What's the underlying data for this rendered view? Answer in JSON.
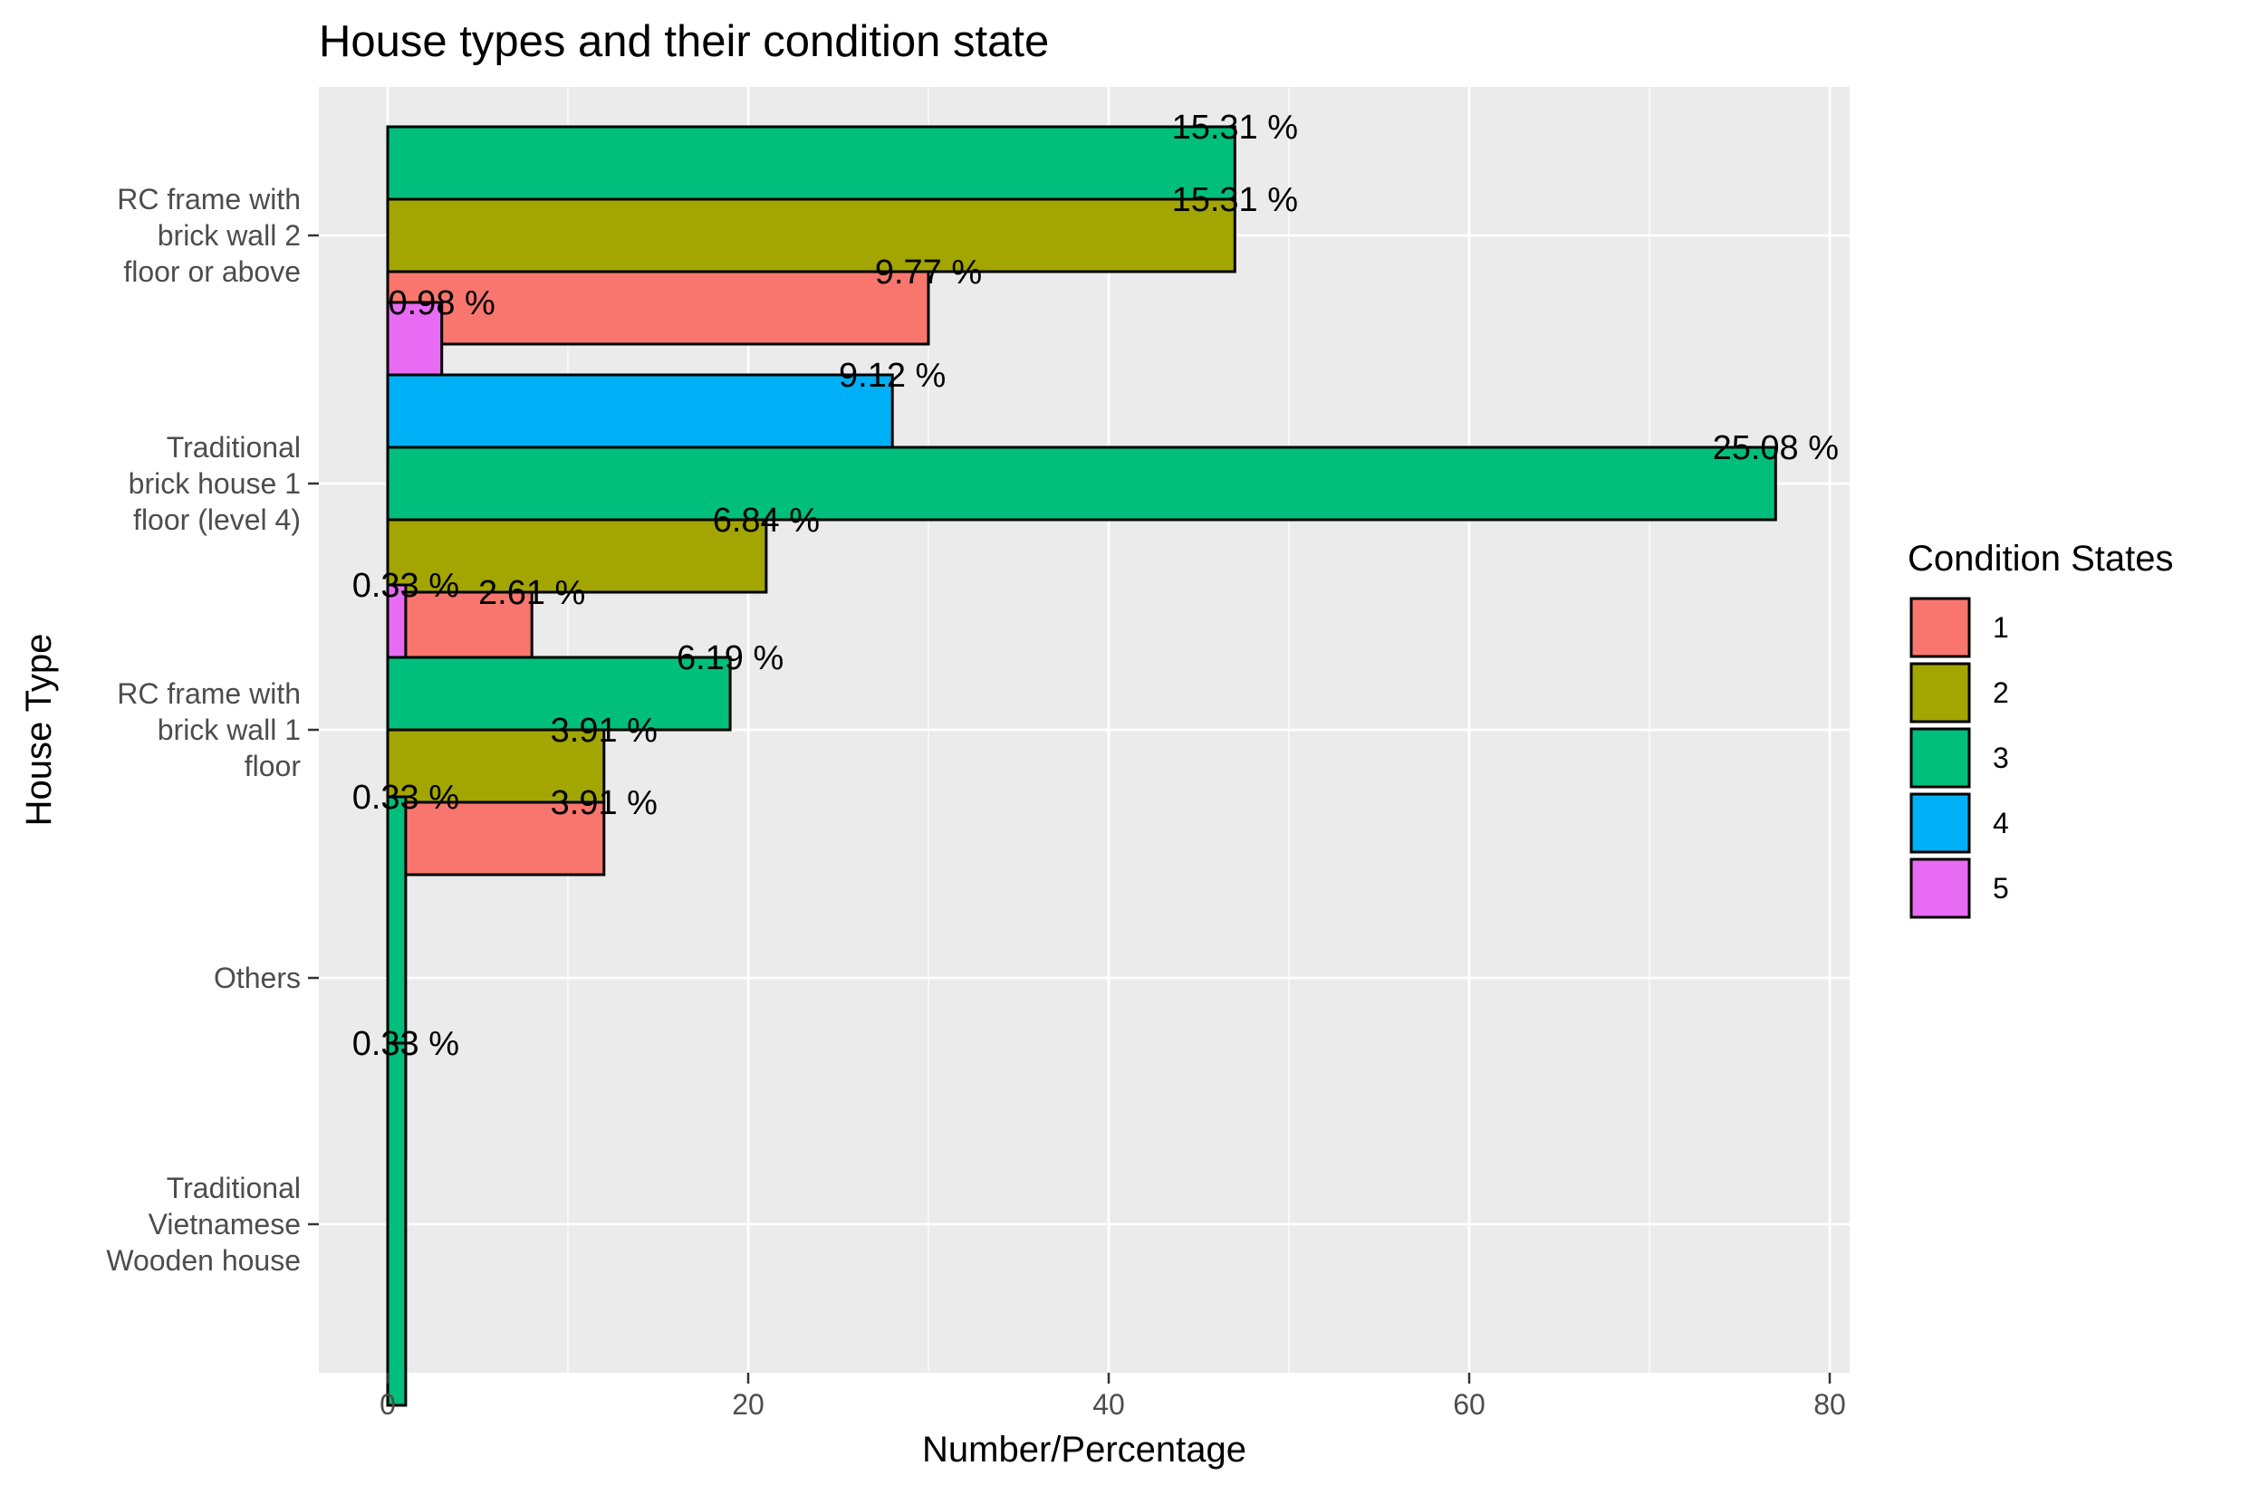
{
  "chart_data": {
    "type": "bar",
    "orientation": "horizontal",
    "title": "House types and their condition state",
    "xlabel": "Number/Percentage",
    "ylabel": "House Type",
    "xlim": [
      0,
      80
    ],
    "x_ticks": [
      0,
      20,
      40,
      60,
      80
    ],
    "grid": true,
    "legend": {
      "title": "Condition States",
      "position": "right"
    },
    "categories": [
      {
        "label": [
          "RC frame with",
          "brick wall 2",
          "floor or above"
        ]
      },
      {
        "label": [
          "Traditional",
          "brick house 1",
          "floor (level 4)"
        ]
      },
      {
        "label": [
          "RC frame with",
          "brick wall 1",
          "floor"
        ]
      },
      {
        "label": [
          "Others"
        ]
      },
      {
        "label": [
          "Traditional",
          "Vietnamese",
          "Wooden house"
        ]
      }
    ],
    "series": [
      {
        "name": "1",
        "color": "#F8766D"
      },
      {
        "name": "2",
        "color": "#A3A500"
      },
      {
        "name": "3",
        "color": "#00BF7D"
      },
      {
        "name": "4",
        "color": "#00B0F6"
      },
      {
        "name": "5",
        "color": "#E76BF3"
      }
    ],
    "bars": [
      {
        "category": 0,
        "series": 0,
        "value": 30,
        "label": "9.77 %"
      },
      {
        "category": 0,
        "series": 1,
        "value": 47,
        "label": "15.31 %"
      },
      {
        "category": 0,
        "series": 2,
        "value": 47,
        "label": "15.31 %"
      },
      {
        "category": 1,
        "series": 0,
        "value": 8,
        "label": "2.61 %"
      },
      {
        "category": 1,
        "series": 1,
        "value": 21,
        "label": "6.84 %"
      },
      {
        "category": 1,
        "series": 2,
        "value": 77,
        "label": "25.08 %"
      },
      {
        "category": 1,
        "series": 3,
        "value": 28,
        "label": "9.12 %"
      },
      {
        "category": 1,
        "series": 4,
        "value": 3,
        "label": "0.98 %"
      },
      {
        "category": 2,
        "series": 0,
        "value": 12,
        "label": "3.91 %"
      },
      {
        "category": 2,
        "series": 1,
        "value": 12,
        "label": "3.91 %"
      },
      {
        "category": 2,
        "series": 2,
        "value": 19,
        "label": "6.19 %"
      },
      {
        "category": 2,
        "series": 4,
        "value": 1,
        "label": "0.33 %"
      },
      {
        "category": 3,
        "series": 2,
        "value": 1,
        "label": "0.33 %"
      },
      {
        "category": 4,
        "series": 2,
        "value": 1,
        "label": "0.33 %"
      }
    ]
  }
}
